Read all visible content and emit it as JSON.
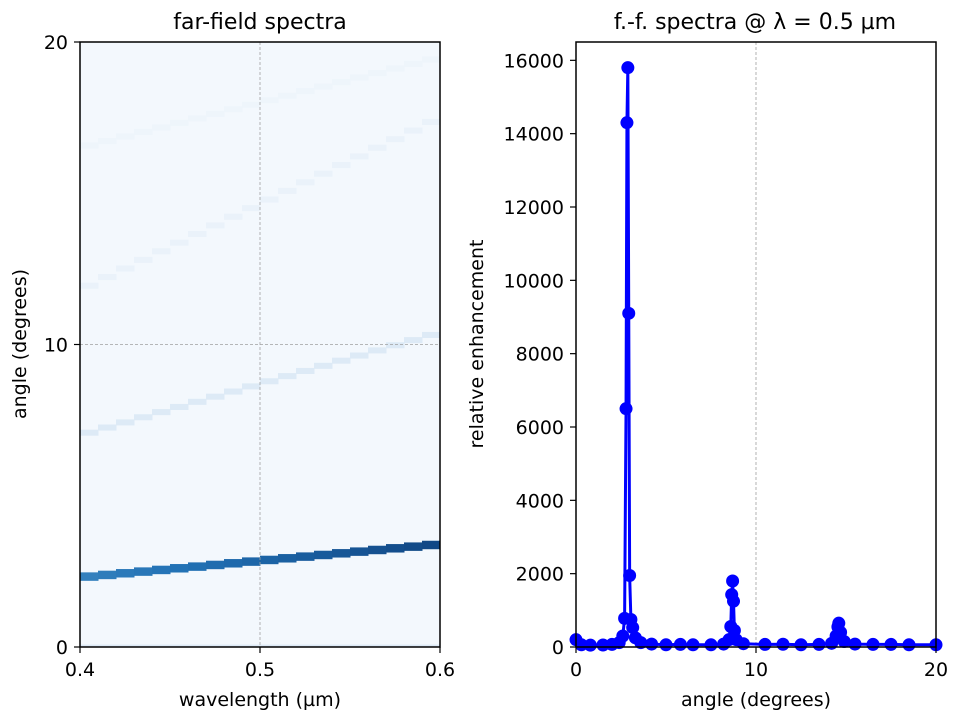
{
  "chart_data": [
    {
      "type": "heatmap",
      "title": "far-field spectra",
      "xlabel": "wavelength (µm)",
      "ylabel": "angle (degrees)",
      "xlim": [
        0.4,
        0.6
      ],
      "ylim": [
        0,
        20
      ],
      "xticks": [
        "0.4",
        "0.5",
        "0.6"
      ],
      "yticks": [
        "0",
        "10",
        "20"
      ],
      "grid": true,
      "colormap": "Blues",
      "background_color": "#f3f8fd",
      "wavelength_bins": 20,
      "bands": [
        {
          "angle_start": 2.3,
          "angle_end": 3.4,
          "intensity": 0.92
        },
        {
          "angle_start": 7.0,
          "angle_end": 10.4,
          "intensity": 0.12
        },
        {
          "angle_start": 11.8,
          "angle_end": 17.5,
          "intensity": 0.05
        },
        {
          "angle_start": 16.5,
          "angle_end": 19.5,
          "intensity": 0.03
        }
      ]
    },
    {
      "type": "line",
      "title": "f.-f. spectra @  λ = 0.5 µm",
      "xlabel": "angle (degrees)",
      "ylabel": "relative enhancement",
      "xlim": [
        0,
        20
      ],
      "ylim": [
        0,
        16500
      ],
      "xticks": [
        "0",
        "10",
        "20"
      ],
      "yticks": [
        "0",
        "2000",
        "4000",
        "6000",
        "8000",
        "10000",
        "12000",
        "14000",
        "16000"
      ],
      "grid": "vertical",
      "series": [
        {
          "color": "#0000ff",
          "points": [
            [
              0.0,
              200
            ],
            [
              0.3,
              60
            ],
            [
              0.8,
              50
            ],
            [
              1.5,
              55
            ],
            [
              2.0,
              70
            ],
            [
              2.4,
              120
            ],
            [
              2.6,
              300
            ],
            [
              2.7,
              780
            ],
            [
              2.78,
              6500
            ],
            [
              2.83,
              14300
            ],
            [
              2.88,
              15800
            ],
            [
              2.93,
              9100
            ],
            [
              2.98,
              1950
            ],
            [
              3.05,
              750
            ],
            [
              3.15,
              530
            ],
            [
              3.3,
              250
            ],
            [
              3.6,
              120
            ],
            [
              4.2,
              80
            ],
            [
              5.0,
              60
            ],
            [
              5.8,
              70
            ],
            [
              6.5,
              60
            ],
            [
              7.5,
              60
            ],
            [
              8.2,
              80
            ],
            [
              8.5,
              200
            ],
            [
              8.6,
              560
            ],
            [
              8.65,
              1430
            ],
            [
              8.7,
              1800
            ],
            [
              8.75,
              1250
            ],
            [
              8.8,
              450
            ],
            [
              8.9,
              200
            ],
            [
              9.3,
              90
            ],
            [
              10.5,
              70
            ],
            [
              11.5,
              75
            ],
            [
              12.5,
              60
            ],
            [
              13.5,
              70
            ],
            [
              14.2,
              100
            ],
            [
              14.45,
              300
            ],
            [
              14.55,
              550
            ],
            [
              14.6,
              650
            ],
            [
              14.7,
              400
            ],
            [
              14.9,
              150
            ],
            [
              15.5,
              80
            ],
            [
              16.5,
              70
            ],
            [
              17.5,
              70
            ],
            [
              18.5,
              60
            ],
            [
              20.0,
              60
            ]
          ]
        }
      ]
    }
  ]
}
